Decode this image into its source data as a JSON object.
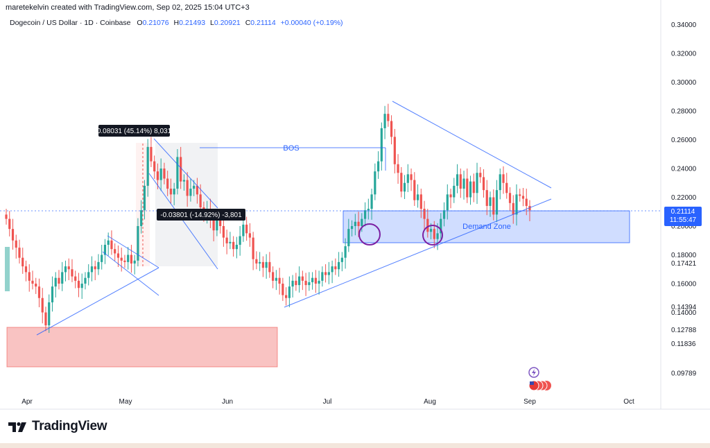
{
  "header": {
    "credit": "maretekelvin created with TradingView.com, Sep 02, 2025 15:04 UTC+3",
    "symbol": "Dogecoin / US Dollar · 1D · Coinbase",
    "o_label": "O",
    "o_value": "0.21076",
    "h_label": "H",
    "h_value": "0.21493",
    "l_label": "L",
    "l_value": "0.20921",
    "c_label": "C",
    "c_value": "0.21114",
    "change": "+0.00040 (+0.19%)"
  },
  "price_tag": {
    "price": "0.21114",
    "countdown": "11:55:47"
  },
  "logo": {
    "text": "TradingView"
  },
  "colors": {
    "up": "#26a69a",
    "down": "#ef5350",
    "line": "#2962ff",
    "demand": "#2962ff",
    "supply": "#ef5350"
  },
  "annotations": {
    "measure_up": "0.08031 (45.14%) 8,031",
    "measure_down": "-0.03801 (-14.92%) -3,801",
    "bos": "BOS",
    "demand_zone": "Demand Zone"
  },
  "chart_data": {
    "type": "candlestick",
    "title": "Dogecoin / US Dollar · 1D · Coinbase",
    "ylim": [
      0.088,
      0.348
    ],
    "y_ticks": [
      "0.34000",
      "0.32000",
      "0.30000",
      "0.28000",
      "0.26000",
      "0.24000",
      "0.22000",
      "0.20000",
      "0.18000",
      "0.17421",
      "0.16000",
      "0.14394",
      "0.14000",
      "0.12788",
      "0.11836",
      "0.09789"
    ],
    "x_labels": [
      "Apr",
      "May",
      "Jun",
      "Jul",
      "Aug",
      "Sep",
      "Oct"
    ],
    "last_close": 0.21114,
    "close_series": [
      0.205,
      0.198,
      0.19,
      0.185,
      0.178,
      0.172,
      0.168,
      0.162,
      0.16,
      0.158,
      0.15,
      0.14,
      0.131,
      0.147,
      0.158,
      0.164,
      0.16,
      0.168,
      0.172,
      0.17,
      0.165,
      0.162,
      0.157,
      0.16,
      0.164,
      0.168,
      0.172,
      0.17,
      0.175,
      0.18,
      0.187,
      0.19,
      0.184,
      0.181,
      0.178,
      0.176,
      0.175,
      0.18,
      0.174,
      0.176,
      0.2,
      0.211,
      0.228,
      0.255,
      0.245,
      0.238,
      0.232,
      0.24,
      0.233,
      0.226,
      0.222,
      0.226,
      0.248,
      0.231,
      0.232,
      0.221,
      0.226,
      0.228,
      0.222,
      0.213,
      0.207,
      0.212,
      0.205,
      0.197,
      0.205,
      0.2,
      0.192,
      0.188,
      0.189,
      0.184,
      0.187,
      0.193,
      0.201,
      0.195,
      0.192,
      0.177,
      0.174,
      0.175,
      0.171,
      0.175,
      0.168,
      0.162,
      0.164,
      0.16,
      0.152,
      0.15,
      0.158,
      0.162,
      0.159,
      0.165,
      0.162,
      0.159,
      0.161,
      0.164,
      0.16,
      0.162,
      0.168,
      0.166,
      0.168,
      0.172,
      0.17,
      0.175,
      0.178,
      0.186,
      0.198,
      0.2,
      0.203,
      0.2,
      0.205,
      0.211,
      0.212,
      0.222,
      0.238,
      0.245,
      0.268,
      0.278,
      0.273,
      0.262,
      0.243,
      0.237,
      0.224,
      0.23,
      0.236,
      0.232,
      0.218,
      0.222,
      0.212,
      0.205,
      0.196,
      0.198,
      0.191,
      0.195,
      0.205,
      0.211,
      0.222,
      0.22,
      0.228,
      0.236,
      0.226,
      0.233,
      0.22,
      0.231,
      0.223,
      0.237,
      0.234,
      0.225,
      0.214,
      0.22,
      0.208,
      0.225,
      0.236,
      0.23,
      0.223,
      0.216,
      0.208,
      0.222,
      0.221,
      0.219,
      0.214,
      0.211
    ],
    "annotations": [
      "0.08031 (45.14%) 8,031",
      "-0.03801 (-14.92%) -3,801",
      "BOS",
      "Demand Zone"
    ]
  }
}
